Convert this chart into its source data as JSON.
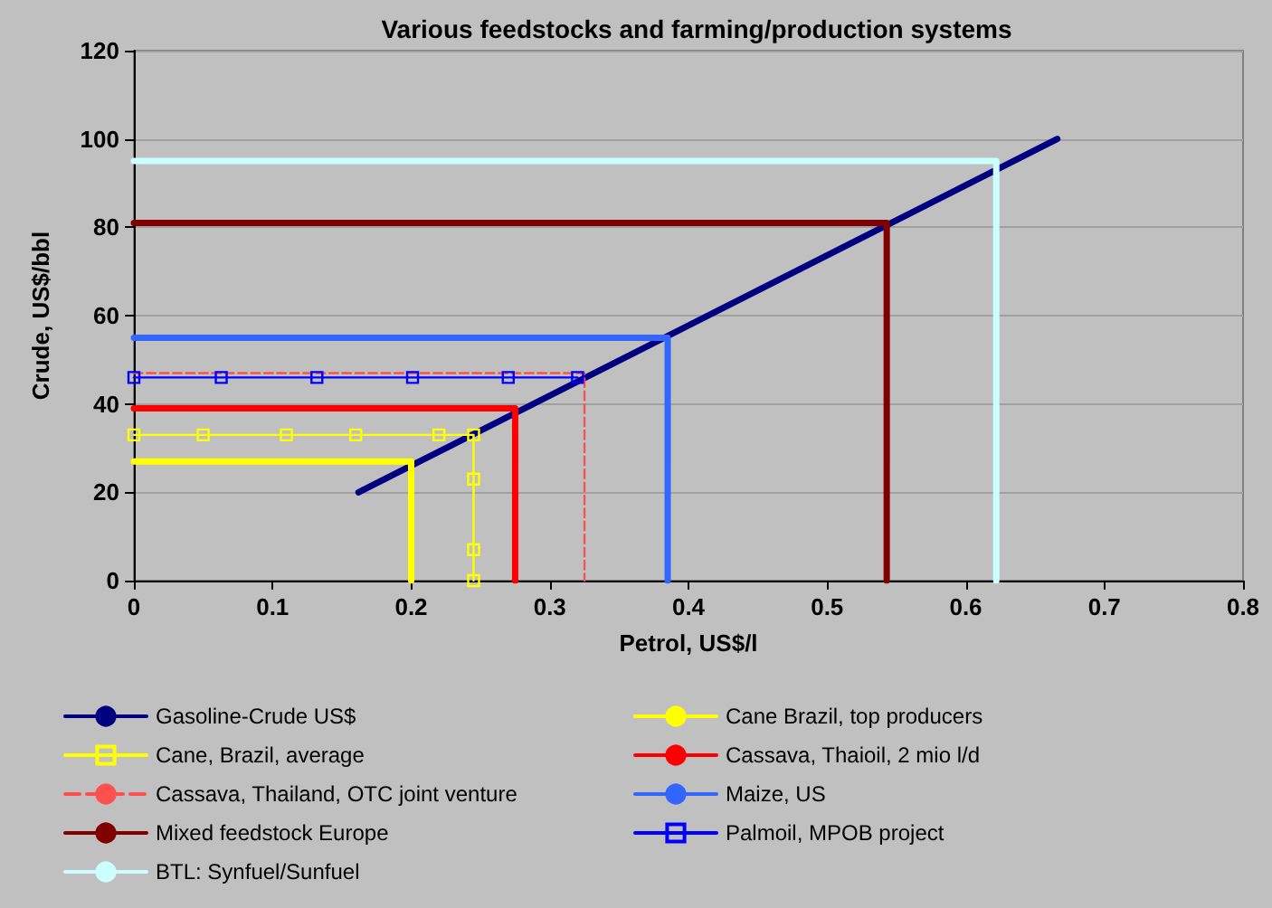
{
  "chart_data": {
    "type": "line",
    "title": "Various feedstocks and farming/production systems",
    "xlabel": "Petrol, US$/l",
    "ylabel": "Crude, US$/bbl",
    "xlim": [
      0,
      0.8
    ],
    "xticks": [
      0,
      0.1,
      0.2,
      0.3,
      0.4,
      0.5,
      0.6,
      0.7,
      0.8
    ],
    "ylim": [
      0,
      120
    ],
    "yticks": [
      0,
      20,
      40,
      60,
      80,
      100,
      120
    ],
    "grid": "y",
    "legend": "bottom",
    "marker": "none",
    "line_style": "solid",
    "series": [
      {
        "name": "Gasoline-Crude US$",
        "color": "#000080",
        "x": [
          0.162,
          0.666
        ],
        "values": [
          20,
          100
        ]
      },
      {
        "name": "Cane Brazil, top producers",
        "color": "#ffff00",
        "x": [
          0,
          0.2,
          0.2
        ],
        "values": [
          27,
          27,
          0
        ]
      },
      {
        "name": "Cane, Brazil, average",
        "color": "#ffff00",
        "marker": "square",
        "x": [
          0,
          0.05,
          0.11,
          0.16,
          0.22,
          0.245,
          0.245,
          0.245,
          0.245
        ],
        "values": [
          33,
          33,
          33,
          33,
          33,
          33,
          23,
          7,
          0
        ]
      },
      {
        "name": "Cassava, Thaioil, 2 mio l/d",
        "color": "#ff0000",
        "x": [
          0,
          0.275,
          0.275
        ],
        "values": [
          39,
          39,
          0
        ]
      },
      {
        "name": "Cassava, Thailand, OTC joint venture",
        "color": "#ff5050",
        "line_style": "dashed",
        "x": [
          0,
          0.325,
          0.325
        ],
        "values": [
          47,
          47,
          0
        ]
      },
      {
        "name": "Maize, US",
        "color": "#3366ff",
        "x": [
          0,
          0.385,
          0.385
        ],
        "values": [
          55,
          55,
          0
        ]
      },
      {
        "name": "Mixed feedstock Europe",
        "color": "#800000",
        "x": [
          0,
          0.543,
          0.543
        ],
        "values": [
          81,
          81,
          0
        ]
      },
      {
        "name": "Palmoil, MPOB project",
        "color": "#0000ff",
        "marker": "square",
        "x": [
          0,
          0.063,
          0.132,
          0.201,
          0.27,
          0.32
        ],
        "values": [
          46,
          46,
          46,
          46,
          46,
          46
        ]
      },
      {
        "name": "BTL: Synfuel/Sunfuel",
        "color": "#ccffff",
        "x": [
          0,
          0.622,
          0.622
        ],
        "values": [
          95,
          95,
          0
        ]
      }
    ]
  }
}
